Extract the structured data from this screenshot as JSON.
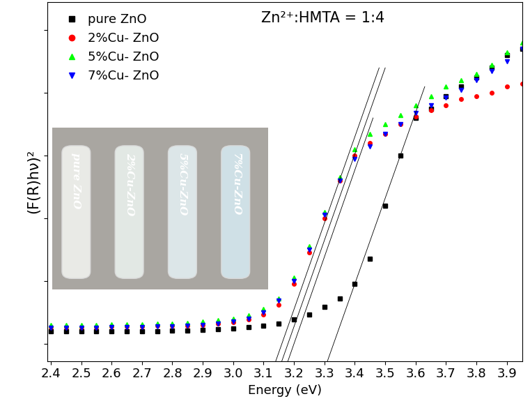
{
  "chart_data": {
    "type": "scatter",
    "title": "Zn²⁺:HMTA = 1:4",
    "x_label": "Energy (eV)",
    "y_label": "(F(R)hν)²",
    "x": [
      2.4,
      2.45,
      2.5,
      2.55,
      2.6,
      2.65,
      2.7,
      2.75,
      2.8,
      2.85,
      2.9,
      2.95,
      3.0,
      3.05,
      3.1,
      3.15,
      3.2,
      3.25,
      3.3,
      3.35,
      3.4,
      3.45,
      3.5,
      3.55,
      3.6,
      3.65,
      3.7,
      3.75,
      3.8,
      3.85,
      3.9,
      3.95
    ],
    "series": [
      {
        "name": "pure ZnO",
        "color": "#000000",
        "marker": "square",
        "line_style": "none",
        "values": [
          0.2,
          0.2,
          0.2,
          0.2,
          0.2,
          0.2,
          0.2,
          0.2,
          0.21,
          0.21,
          0.22,
          0.23,
          0.24,
          0.26,
          0.28,
          0.32,
          0.38,
          0.46,
          0.58,
          0.72,
          0.95,
          1.35,
          2.2,
          3.0,
          3.6,
          3.75,
          3.95,
          4.1,
          4.25,
          4.4,
          4.6,
          4.7
        ]
      },
      {
        "name": "2%Cu- ZnO",
        "color": "#ff0000",
        "marker": "circle",
        "line_style": "none",
        "values": [
          0.26,
          0.26,
          0.26,
          0.26,
          0.27,
          0.27,
          0.27,
          0.28,
          0.28,
          0.29,
          0.3,
          0.32,
          0.34,
          0.38,
          0.46,
          0.62,
          0.95,
          1.45,
          2.0,
          2.6,
          3.0,
          3.2,
          3.35,
          3.5,
          3.62,
          3.72,
          3.8,
          3.9,
          3.95,
          4.0,
          4.1,
          4.15
        ]
      },
      {
        "name": "5%Cu- ZnO",
        "color": "#00ff00",
        "marker": "triangle_up",
        "line_style": "none",
        "values": [
          0.3,
          0.3,
          0.3,
          0.3,
          0.31,
          0.31,
          0.31,
          0.32,
          0.32,
          0.33,
          0.35,
          0.37,
          0.4,
          0.45,
          0.55,
          0.72,
          1.05,
          1.55,
          2.1,
          2.65,
          3.1,
          3.35,
          3.5,
          3.65,
          3.8,
          3.95,
          4.1,
          4.2,
          4.3,
          4.45,
          4.65,
          4.8
        ]
      },
      {
        "name": "7%Cu- ZnO",
        "color": "#0000ff",
        "marker": "triangle_down",
        "line_style": "none",
        "values": [
          0.25,
          0.25,
          0.25,
          0.25,
          0.26,
          0.26,
          0.26,
          0.27,
          0.27,
          0.28,
          0.3,
          0.32,
          0.35,
          0.4,
          0.5,
          0.68,
          1.0,
          1.5,
          2.05,
          2.6,
          2.95,
          3.15,
          3.35,
          3.5,
          3.68,
          3.8,
          3.92,
          4.05,
          4.2,
          4.35,
          4.5,
          4.7
        ]
      }
    ],
    "tangent_lines": [
      {
        "x": [
          3.14,
          3.48
        ],
        "y": [
          -0.28,
          4.4
        ]
      },
      {
        "x": [
          3.16,
          3.5
        ],
        "y": [
          -0.28,
          4.4
        ]
      },
      {
        "x": [
          3.18,
          3.46
        ],
        "y": [
          -0.28,
          3.6
        ]
      },
      {
        "x": [
          3.31,
          3.63
        ],
        "y": [
          -0.28,
          4.1
        ]
      }
    ],
    "annotations": [
      "pure ZnO",
      "2%Cu-ZnO",
      "5%Cu-ZnO",
      "7%Cu-ZnO"
    ],
    "xlim": [
      2.39,
      3.95
    ],
    "xticks": [
      2.4,
      2.5,
      2.6,
      2.7,
      2.8,
      2.9,
      3.0,
      3.1,
      3.2,
      3.3,
      3.4,
      3.5,
      3.6,
      3.7,
      3.8,
      3.9
    ],
    "ylim": [
      -0.28,
      5.45
    ],
    "yticks": [
      0,
      1,
      2,
      3,
      4,
      5
    ],
    "tick_labels": "x",
    "legend": "upper left",
    "grid": false
  }
}
